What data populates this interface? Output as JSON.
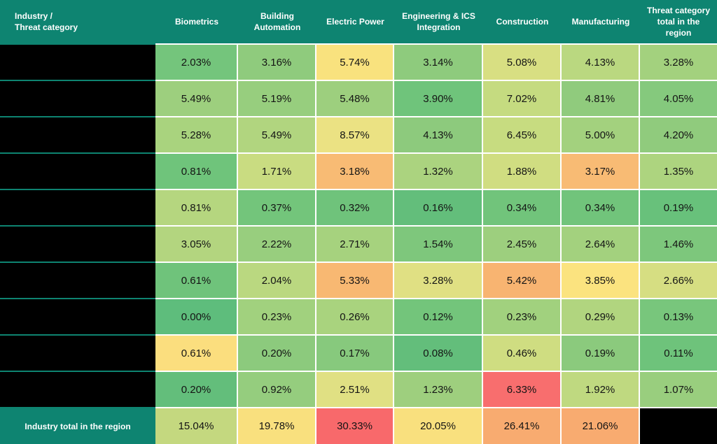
{
  "colors": {
    "header_bg": "#0E8471",
    "header_text": "#FFFFFF",
    "grid_line": "#FFFFFF",
    "redaction": "#000000",
    "cell_text": "#141414",
    "red_max": "#F8696B",
    "yellow_mid": "#FFE984",
    "green_min": "#63BE7B"
  },
  "title_cell": {
    "line1": "Industry /",
    "line2": "Threat category"
  },
  "chart_data": {
    "type": "heatmap",
    "value_format": "percent, 2 decimals",
    "columns": [
      "Biometrics",
      "Building Automation",
      "Electric Power",
      "Engineering & ICS Integration",
      "Construction",
      "Manufacturing",
      "Threat category total in the region"
    ],
    "row_labels_redacted": true,
    "rows": [
      {
        "values": [
          2.03,
          3.16,
          5.74,
          3.14,
          5.08,
          4.13,
          3.28
        ],
        "cell_colors": [
          "#74C57C",
          "#8FCB7D",
          "#F9E27E",
          "#8ECB7D",
          "#D8DF82",
          "#BAD880",
          "#A3D17E"
        ]
      },
      {
        "values": [
          5.49,
          5.19,
          5.48,
          3.9,
          7.02,
          4.81,
          4.05
        ],
        "cell_colors": [
          "#9DCF7E",
          "#97CE7E",
          "#9DCF7E",
          "#6FC47B",
          "#C5DB80",
          "#90CB7D",
          "#85C97D"
        ]
      },
      {
        "values": [
          5.28,
          5.49,
          8.57,
          4.13,
          6.45,
          5.0,
          4.2
        ],
        "cell_colors": [
          "#A9D37E",
          "#B1D57F",
          "#EBE283",
          "#8DCA7D",
          "#C7DC80",
          "#A3D17E",
          "#90CB7D"
        ]
      },
      {
        "values": [
          0.81,
          1.71,
          3.18,
          1.32,
          1.88,
          3.17,
          1.35
        ],
        "cell_colors": [
          "#6FC47B",
          "#C9DC81",
          "#F8BB74",
          "#ABD37F",
          "#D0DD81",
          "#F8BB74",
          "#ADD47F"
        ]
      },
      {
        "values": [
          0.81,
          0.37,
          0.32,
          0.16,
          0.34,
          0.34,
          0.19
        ],
        "cell_colors": [
          "#B5D67F",
          "#73C57B",
          "#6FC37B",
          "#63BE7B",
          "#71C47B",
          "#71C47B",
          "#68C17B"
        ]
      },
      {
        "values": [
          3.05,
          2.22,
          2.71,
          1.54,
          2.45,
          2.64,
          1.46
        ],
        "cell_colors": [
          "#B3D57F",
          "#98CE7E",
          "#A6D27E",
          "#7EC77C",
          "#9DCF7E",
          "#A3D17E",
          "#7DC77C"
        ]
      },
      {
        "values": [
          0.61,
          2.04,
          5.33,
          3.28,
          5.42,
          3.85,
          2.66
        ],
        "cell_colors": [
          "#6FC37B",
          "#BAD880",
          "#F8B872",
          "#E0E083",
          "#F8B471",
          "#FBE37F",
          "#D6DE82"
        ]
      },
      {
        "values": [
          0.0,
          0.23,
          0.26,
          0.12,
          0.23,
          0.29,
          0.13
        ],
        "cell_colors": [
          "#5EBD7C",
          "#A1D17E",
          "#A9D37E",
          "#73C57B",
          "#A1D17E",
          "#B1D57F",
          "#78C67C"
        ]
      },
      {
        "values": [
          0.61,
          0.2,
          0.17,
          0.08,
          0.46,
          0.19,
          0.11
        ],
        "cell_colors": [
          "#FBDE7E",
          "#8CCA7D",
          "#87C97D",
          "#63BE7B",
          "#CFDD81",
          "#8BCA7D",
          "#6EC37B"
        ]
      },
      {
        "values": [
          0.2,
          0.92,
          2.51,
          1.23,
          6.33,
          1.92,
          1.07
        ],
        "cell_colors": [
          "#63BE7B",
          "#95CD7E",
          "#E0E083",
          "#9ECF7E",
          "#F86E6E",
          "#BFD980",
          "#99CE7E"
        ]
      }
    ],
    "total_row": {
      "label": "Industry total in the region",
      "values": [
        15.04,
        19.78,
        30.33,
        20.05,
        26.41,
        21.06,
        null
      ],
      "cell_colors": [
        "#C4D87F",
        "#F9E07E",
        "#F8696B",
        "#F9E07E",
        "#F8AB70",
        "#F8AB70",
        "#000000"
      ]
    }
  }
}
